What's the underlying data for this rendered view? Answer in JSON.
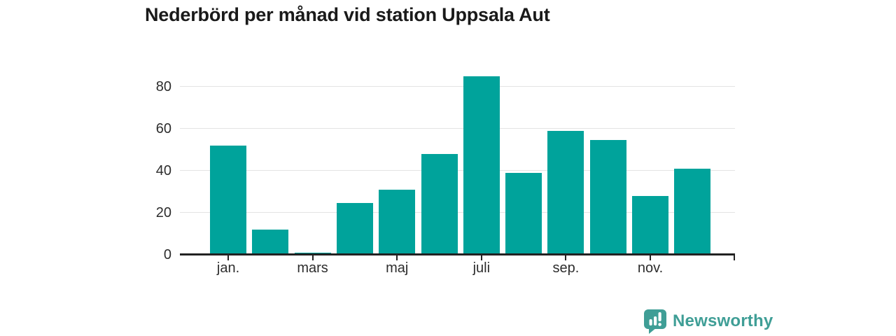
{
  "title": "Nederbörd per månad vid station Uppsala Aut",
  "branding": {
    "logo_text": "Newsworthy",
    "logo_icon": "bar-chart-speech-bubble-icon"
  },
  "colors": {
    "bar": "#00A39B",
    "logo": "#3F9E96",
    "logo_glyph": "#FFFFFF",
    "title": "#1A1A1A",
    "axis": "#222222",
    "grid": "#E3E3E3",
    "tick_label": "#2D2D2D",
    "background": "#FFFFFF"
  },
  "chart_data": {
    "type": "bar",
    "title": "Nederbörd per månad vid station Uppsala Aut",
    "values": [
      52,
      12,
      1,
      24.5,
      31,
      48,
      85,
      39,
      59,
      54.5,
      28,
      41
    ],
    "n_bars": 12,
    "x_ticks": [
      {
        "index": 0,
        "label": "jan."
      },
      {
        "index": 2,
        "label": "mars"
      },
      {
        "index": 4,
        "label": "maj"
      },
      {
        "index": 6,
        "label": "juli"
      },
      {
        "index": 8,
        "label": "sep."
      },
      {
        "index": 10,
        "label": "nov."
      }
    ],
    "y_ticks": [
      0,
      20,
      40,
      60,
      80
    ],
    "ylim": [
      0,
      88
    ],
    "xlabel": "",
    "ylabel": "",
    "grid": "horizontal",
    "legend": "none"
  }
}
